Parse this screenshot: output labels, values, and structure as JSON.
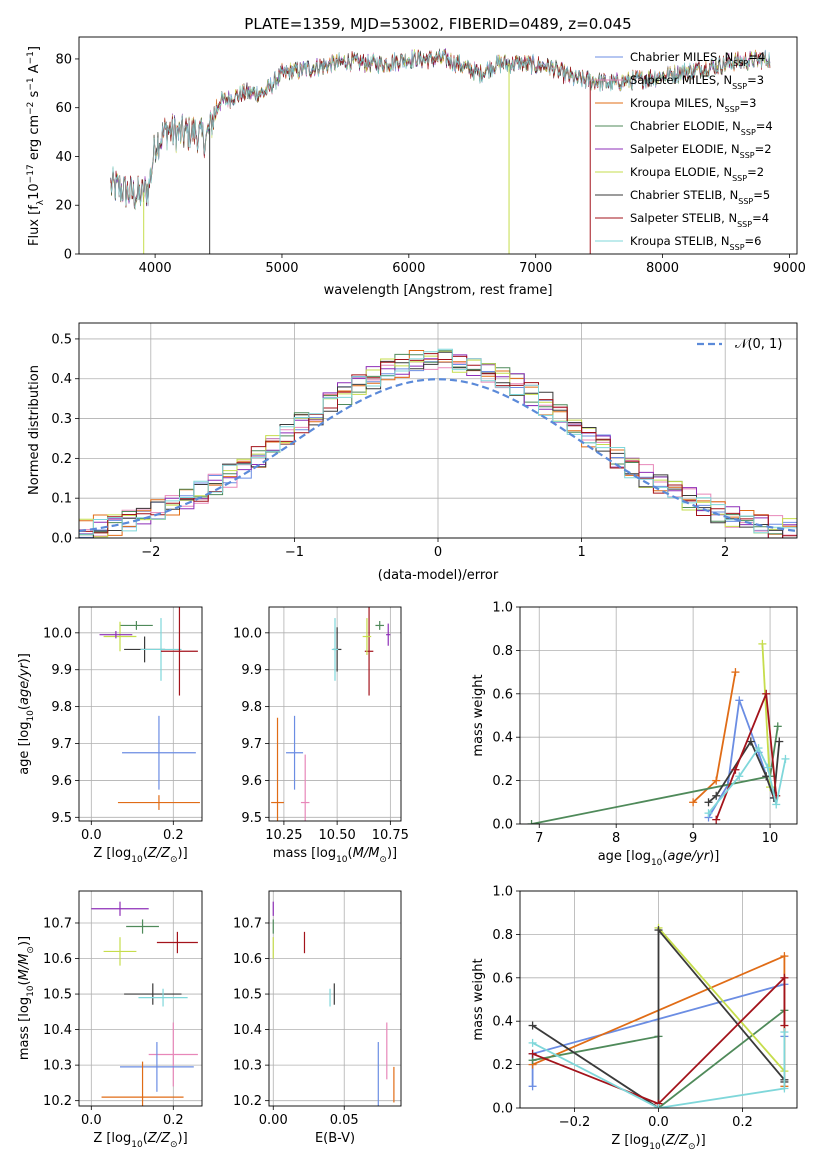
{
  "figure": {
    "title": "PLATE=1359, MJD=53002, FIBERID=0489, z=0.045"
  },
  "colors": {
    "Chabrier MILES": "#6b8de3",
    "Salpeter MILES": "#e887b9",
    "Kroupa MILES": "#e06c16",
    "Chabrier ELODIE": "#4f8a5a",
    "Salpeter ELODIE": "#8e2fb8",
    "Kroupa ELODIE": "#c6dd4c",
    "Chabrier STELIB": "#3a3a3a",
    "Salpeter STELIB": "#a3131b",
    "Kroupa STELIB": "#7fd7da"
  },
  "chart_data": [
    {
      "type": "line",
      "panel": "spectrum",
      "xlabel": "wavelength [Angstrom, rest frame]",
      "ylabel": "Flux [f_λ 10^-17 erg cm^-2 s^-1 A^-1]",
      "xlim": [
        3400,
        9060
      ],
      "ylim": [
        0,
        89
      ],
      "xticks": [
        4000,
        5000,
        6000,
        7000,
        8000,
        9000
      ],
      "yticks": [
        0,
        20,
        40,
        60,
        80
      ],
      "legend_position": "top-right",
      "legend": [
        {
          "name": "Chabrier MILES",
          "nssp": 4
        },
        {
          "name": "Salpeter MILES",
          "nssp": 3
        },
        {
          "name": "Kroupa MILES",
          "nssp": 3
        },
        {
          "name": "Chabrier ELODIE",
          "nssp": 4
        },
        {
          "name": "Salpeter ELODIE",
          "nssp": 2
        },
        {
          "name": "Kroupa ELODIE",
          "nssp": 2
        },
        {
          "name": "Chabrier STELIB",
          "nssp": 5
        },
        {
          "name": "Salpeter STELIB",
          "nssp": 4
        },
        {
          "name": "Kroupa STELIB",
          "nssp": 6
        }
      ],
      "continuum": {
        "x": [
          3650,
          3720,
          3800,
          3880,
          3950,
          4000,
          4100,
          4200,
          4300,
          4400,
          4500,
          4700,
          4860,
          5000,
          5200,
          5500,
          5800,
          6000,
          6300,
          6560,
          6700,
          6900,
          7100,
          7300,
          7600,
          8000,
          8300,
          8600,
          8850
        ],
        "y": [
          28,
          27,
          25,
          24,
          27,
          45,
          51,
          49,
          50,
          47,
          62,
          66,
          66,
          74,
          76,
          79,
          78,
          80,
          80,
          74,
          78,
          78,
          77,
          72,
          70,
          73,
          76,
          79,
          80
        ]
      },
      "sharp_dips": [
        {
          "x": 3910,
          "y": 0
        },
        {
          "x": 4430,
          "y": 0
        },
        {
          "x": 6790,
          "y": 0
        },
        {
          "x": 7430,
          "y": 0
        }
      ]
    },
    {
      "type": "line",
      "panel": "residual histogram",
      "xlabel": "(data-model)/error",
      "ylabel": "Normed distribution",
      "xlim": [
        -2.5,
        2.5
      ],
      "ylim": [
        0,
        0.54
      ],
      "xticks": [
        -2,
        -1,
        0,
        1,
        2
      ],
      "yticks": [
        0.0,
        0.1,
        0.2,
        0.3,
        0.4,
        0.5
      ],
      "grid": true,
      "legend_position": "top-right",
      "reference_curve": {
        "label": "N(0,1)",
        "mean": 0,
        "sigma": 1
      },
      "bin_width": 0.1
    },
    {
      "type": "scatter",
      "panel": "age vs Z",
      "xlabel": "Z [log10(Z/Z⊙)]",
      "ylabel": "age [log10(age/yr)]",
      "xlim": [
        -0.03,
        0.27
      ],
      "ylim": [
        9.49,
        10.07
      ],
      "xticks": [
        0.0,
        0.2
      ],
      "yticks": [
        9.5,
        9.6,
        9.7,
        9.8,
        9.9,
        10.0
      ],
      "grid": true,
      "points": [
        {
          "series": "Chabrier MILES",
          "x": 0.165,
          "y": 9.675,
          "xerr": 0.09,
          "yerr": 0.1
        },
        {
          "series": "Kroupa MILES",
          "x": 0.165,
          "y": 9.54,
          "xerr": 0.1,
          "yerr": 0.02
        },
        {
          "series": "Chabrier STELIB",
          "x": 0.13,
          "y": 9.955,
          "xerr": 0.05,
          "yerr": 0.035
        },
        {
          "series": "Kroupa STELIB",
          "x": 0.17,
          "y": 9.955,
          "xerr": 0.05,
          "yerr": 0.085
        },
        {
          "series": "Salpeter STELIB",
          "x": 0.215,
          "y": 9.95,
          "xerr": 0.045,
          "yerr": 0.12
        },
        {
          "series": "Chabrier ELODIE",
          "x": 0.11,
          "y": 10.02,
          "xerr": 0.04,
          "yerr": 0.012
        },
        {
          "series": "Kroupa ELODIE",
          "x": 0.07,
          "y": 9.99,
          "xerr": 0.04,
          "yerr": 0.04
        },
        {
          "series": "Salpeter ELODIE",
          "x": 0.06,
          "y": 9.995,
          "xerr": 0.04,
          "yerr": 0.01
        }
      ]
    },
    {
      "type": "scatter",
      "panel": "age vs mass",
      "xlabel": "mass [log10(M/M⊙)]",
      "ylabel": "",
      "xlim": [
        10.18,
        10.8
      ],
      "ylim": [
        9.49,
        10.07
      ],
      "xticks": [
        10.25,
        10.5,
        10.75
      ],
      "yticks": [
        9.5,
        9.6,
        9.7,
        9.8,
        9.9,
        10.0
      ],
      "grid": true,
      "points": [
        {
          "series": "Chabrier MILES",
          "x": 10.3,
          "y": 9.675,
          "xerr": 0.04,
          "yerr": 0.1
        },
        {
          "series": "Kroupa MILES",
          "x": 10.22,
          "y": 9.54,
          "xerr": 0.03,
          "yerr": 0.23
        },
        {
          "series": "Salpeter MILES",
          "x": 10.35,
          "y": 9.54,
          "xerr": 0.02,
          "yerr": 0.13
        },
        {
          "series": "Chabrier STELIB",
          "x": 10.5,
          "y": 9.955,
          "xerr": 0.02,
          "yerr": 0.06
        },
        {
          "series": "Kroupa STELIB",
          "x": 10.49,
          "y": 9.955,
          "xerr": 0.015,
          "yerr": 0.085
        },
        {
          "series": "Salpeter STELIB",
          "x": 10.65,
          "y": 9.95,
          "xerr": 0.02,
          "yerr": 0.12
        },
        {
          "series": "Chabrier ELODIE",
          "x": 10.7,
          "y": 10.02,
          "xerr": 0.02,
          "yerr": 0.012
        },
        {
          "series": "Kroupa ELODIE",
          "x": 10.64,
          "y": 9.99,
          "xerr": 0.02,
          "yerr": 0.05
        },
        {
          "series": "Salpeter ELODIE",
          "x": 10.74,
          "y": 9.995,
          "xerr": 0.01,
          "yerr": 0.03
        }
      ]
    },
    {
      "type": "line",
      "panel": "mass weight vs age",
      "xlabel": "age [log10(age/yr)]",
      "ylabel": "mass weight",
      "xlim": [
        6.75,
        10.35
      ],
      "ylim": [
        0,
        1.0
      ],
      "xticks": [
        7,
        8,
        9,
        10
      ],
      "yticks": [
        0.0,
        0.2,
        0.4,
        0.6,
        0.8,
        1.0
      ],
      "grid": true,
      "series": [
        {
          "name": "Chabrier MILES",
          "x": [
            9.2,
            9.45,
            9.6,
            9.85,
            10.05
          ],
          "y": [
            0.03,
            0.18,
            0.57,
            0.33,
            0.12
          ]
        },
        {
          "name": "Kroupa MILES",
          "x": [
            9.0,
            9.3,
            9.55
          ],
          "y": [
            0.1,
            0.2,
            0.7
          ]
        },
        {
          "name": "Chabrier ELODIE",
          "x": [
            6.9,
            10.0,
            10.1
          ],
          "y": [
            0.0,
            0.22,
            0.45
          ]
        },
        {
          "name": "Kroupa ELODIE",
          "x": [
            9.9,
            10.0
          ],
          "y": [
            0.83,
            0.17
          ]
        },
        {
          "name": "Chabrier STELIB",
          "x": [
            9.2,
            9.3,
            9.75,
            9.95,
            10.05,
            10.12
          ],
          "y": [
            0.1,
            0.13,
            0.38,
            0.22,
            0.12,
            0.38
          ]
        },
        {
          "name": "Salpeter STELIB",
          "x": [
            9.3,
            9.55,
            9.95,
            10.08
          ],
          "y": [
            0.02,
            0.25,
            0.6,
            0.13
          ]
        },
        {
          "name": "Kroupa STELIB",
          "x": [
            9.2,
            9.6,
            9.85,
            9.97,
            10.08,
            10.2
          ],
          "y": [
            0.05,
            0.22,
            0.35,
            0.26,
            0.09,
            0.3
          ]
        }
      ]
    },
    {
      "type": "scatter",
      "panel": "mass vs Z",
      "xlabel": "Z [log10(Z/Z⊙)]",
      "ylabel": "mass [log10(M/M⊙)]",
      "xlim": [
        -0.03,
        0.27
      ],
      "ylim": [
        10.185,
        10.79
      ],
      "xticks": [
        0.0,
        0.2
      ],
      "yticks": [
        10.2,
        10.3,
        10.4,
        10.5,
        10.6,
        10.7
      ],
      "grid": true,
      "points": [
        {
          "series": "Salpeter ELODIE",
          "x": 0.07,
          "y": 10.74,
          "xerr": 0.07,
          "yerr": 0.02
        },
        {
          "series": "Chabrier ELODIE",
          "x": 0.125,
          "y": 10.69,
          "xerr": 0.04,
          "yerr": 0.02
        },
        {
          "series": "Salpeter STELIB",
          "x": 0.21,
          "y": 10.645,
          "xerr": 0.05,
          "yerr": 0.03
        },
        {
          "series": "Kroupa ELODIE",
          "x": 0.07,
          "y": 10.62,
          "xerr": 0.04,
          "yerr": 0.04
        },
        {
          "series": "Chabrier STELIB",
          "x": 0.15,
          "y": 10.5,
          "xerr": 0.07,
          "yerr": 0.03
        },
        {
          "series": "Kroupa STELIB",
          "x": 0.175,
          "y": 10.49,
          "xerr": 0.06,
          "yerr": 0.025
        },
        {
          "series": "Salpeter MILES",
          "x": 0.2,
          "y": 10.33,
          "xerr": 0.06,
          "yerr": 0.09
        },
        {
          "series": "Chabrier MILES",
          "x": 0.16,
          "y": 10.295,
          "xerr": 0.09,
          "yerr": 0.07
        },
        {
          "series": "Kroupa MILES",
          "x": 0.125,
          "y": 10.21,
          "xerr": 0.1,
          "yerr": 0.1
        }
      ]
    },
    {
      "type": "scatter",
      "panel": "mass vs E(B-V)",
      "xlabel": "E(B-V)",
      "ylabel": "",
      "xlim": [
        -0.003,
        0.09
      ],
      "ylim": [
        10.185,
        10.79
      ],
      "xticks": [
        0.0,
        0.05
      ],
      "yticks": [
        10.2,
        10.3,
        10.4,
        10.5,
        10.6,
        10.7
      ],
      "grid": true,
      "points": [
        {
          "series": "Salpeter ELODIE",
          "x": 0.0,
          "y": 10.74,
          "yerr": 0.02
        },
        {
          "series": "Chabrier ELODIE",
          "x": 0.0,
          "y": 10.69,
          "yerr": 0.02
        },
        {
          "series": "Kroupa ELODIE",
          "x": 0.0,
          "y": 10.63,
          "yerr": 0.03
        },
        {
          "series": "Salpeter STELIB",
          "x": 0.022,
          "y": 10.645,
          "yerr": 0.03
        },
        {
          "series": "Chabrier STELIB",
          "x": 0.043,
          "y": 10.5,
          "yerr": 0.03
        },
        {
          "series": "Kroupa STELIB",
          "x": 0.04,
          "y": 10.49,
          "yerr": 0.025
        },
        {
          "series": "Salpeter MILES",
          "x": 0.08,
          "y": 10.34,
          "yerr": 0.08
        },
        {
          "series": "Chabrier MILES",
          "x": 0.074,
          "y": 10.265,
          "yerr": 0.1
        },
        {
          "series": "Kroupa MILES",
          "x": 0.085,
          "y": 10.245,
          "yerr": 0.05
        }
      ]
    },
    {
      "type": "line",
      "panel": "mass weight vs Z",
      "xlabel": "Z [log10(Z/Z⊙)]",
      "ylabel": "mass weight",
      "xlim": [
        -0.33,
        0.33
      ],
      "ylim": [
        0,
        1.0
      ],
      "xticks": [
        -0.2,
        0.0,
        0.2
      ],
      "yticks": [
        0.0,
        0.2,
        0.4,
        0.6,
        0.8,
        1.0
      ],
      "grid": true,
      "series": [
        {
          "name": "Chabrier MILES",
          "x": [
            -0.3,
            -0.3,
            0.3,
            0.3
          ],
          "y": [
            0.1,
            0.25,
            0.57,
            0.33
          ]
        },
        {
          "name": "Kroupa MILES",
          "x": [
            -0.3,
            0.3,
            0.3
          ],
          "y": [
            0.2,
            0.7,
            0.1
          ]
        },
        {
          "name": "Chabrier ELODIE",
          "x": [
            -0.3,
            0.0,
            0.0,
            0.3
          ],
          "y": [
            0.22,
            0.33,
            0.0,
            0.45
          ]
        },
        {
          "name": "Kroupa ELODIE",
          "x": [
            0.0,
            0.3
          ],
          "y": [
            0.83,
            0.17
          ]
        },
        {
          "name": "Chabrier STELIB",
          "x": [
            -0.3,
            0.0,
            0.0,
            0.3,
            0.3
          ],
          "y": [
            0.38,
            0.0,
            0.82,
            0.13,
            0.12
          ]
        },
        {
          "name": "Salpeter STELIB",
          "x": [
            -0.3,
            0.0,
            0.3,
            0.3
          ],
          "y": [
            0.25,
            0.02,
            0.6,
            0.38
          ]
        },
        {
          "name": "Kroupa STELIB",
          "x": [
            -0.3,
            0.0,
            0.3,
            0.3
          ],
          "y": [
            0.3,
            0.0,
            0.09,
            0.35
          ]
        }
      ]
    }
  ]
}
